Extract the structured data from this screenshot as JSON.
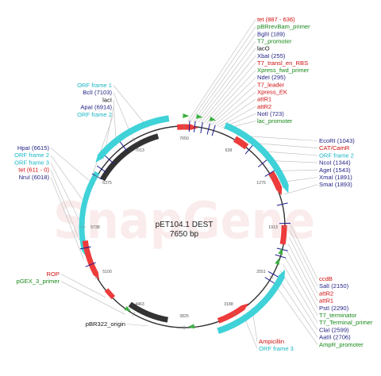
{
  "title": "pET104.1 DEST",
  "subtitle": "7650 bp",
  "watermark": "SnapGene",
  "colors": {
    "backbone": "#333333",
    "red": "#ee3b3b",
    "cyan": "#3fd2d8",
    "gray": "#555555",
    "green": "#3cb043",
    "navy": "#1a1a8c",
    "label_red": "#d01010",
    "label_green": "#18891a",
    "label_cyan": "#19b7c4",
    "label_navy": "#1f1f85",
    "label_black": "#111111",
    "leader": "#bbbbbb",
    "watermark": "#f7dede"
  },
  "ticks": [
    "7650",
    "638",
    "1275",
    "1913",
    "2551",
    "3188",
    "3825",
    "4463",
    "5100",
    "5738",
    "6375",
    "7013"
  ],
  "labels": {
    "top": [
      {
        "text": "tet (887 - 636)",
        "color": "label_red"
      },
      {
        "text": "pBRrevBam_primer",
        "color": "label_green"
      },
      {
        "text": "BglII (189)",
        "color": "label_navy"
      },
      {
        "text": "T7_promoter",
        "color": "label_green"
      },
      {
        "text": "lacO",
        "color": "label_black"
      },
      {
        "text": "XbaI (255)",
        "color": "label_navy"
      },
      {
        "text": "T7_transl_en_RBS",
        "color": "label_red"
      },
      {
        "text": "Xpress_fwd_primer",
        "color": "label_green"
      },
      {
        "text": "NdeI (295)",
        "color": "label_navy"
      },
      {
        "text": "T7_leader",
        "color": "label_red"
      },
      {
        "text": "Xpress_EK",
        "color": "label_red"
      },
      {
        "text": "attR1",
        "color": "label_red"
      },
      {
        "text": "attR2",
        "color": "label_red"
      },
      {
        "text": "NotI (723)",
        "color": "label_navy"
      },
      {
        "text": "lac_promoter",
        "color": "label_green"
      }
    ],
    "right_upper": [
      {
        "text": "EcoRI (1043)",
        "color": "label_navy"
      },
      {
        "text": "CAT/CamR",
        "color": "label_red"
      },
      {
        "text": "ORF frame 2",
        "color": "label_cyan"
      },
      {
        "text": "NcoI (1344)",
        "color": "label_navy"
      },
      {
        "text": "AgeI (1543)",
        "color": "label_navy"
      },
      {
        "text": "XmaI (1891)",
        "color": "label_navy"
      },
      {
        "text": "SmaI (1893)",
        "color": "label_navy"
      }
    ],
    "right_lower": [
      {
        "text": "ccdB",
        "color": "label_red"
      },
      {
        "text": "SalI (2150)",
        "color": "label_navy"
      },
      {
        "text": "attR2",
        "color": "label_red"
      },
      {
        "text": "attR1",
        "color": "label_red"
      },
      {
        "text": "PstI (2290)",
        "color": "label_navy"
      },
      {
        "text": "T7_terminator",
        "color": "label_green"
      },
      {
        "text": "T7_Terminal_primer",
        "color": "label_green"
      },
      {
        "text": "ClaI (2599)",
        "color": "label_navy"
      },
      {
        "text": "AatII (2706)",
        "color": "label_navy"
      },
      {
        "text": "AmpR_promoter",
        "color": "label_green"
      }
    ],
    "bottom_right": [
      {
        "text": "Ampicillin",
        "color": "label_red"
      },
      {
        "text": "ORF frame 3",
        "color": "label_cyan"
      }
    ],
    "left_top": [
      {
        "text": "ORF frame 1",
        "color": "label_cyan"
      },
      {
        "text": "BclI (7103)",
        "color": "label_navy"
      },
      {
        "text": "lacI",
        "color": "label_black"
      },
      {
        "text": "ApaI (6914)",
        "color": "label_navy"
      },
      {
        "text": "ORF frame 2",
        "color": "label_cyan"
      }
    ],
    "left_mid": [
      {
        "text": "HpaI (6615)",
        "color": "label_navy"
      },
      {
        "text": "ORF frame 2",
        "color": "label_cyan"
      },
      {
        "text": "ORF frame 3",
        "color": "label_cyan"
      },
      {
        "text": "tet (611 - 0)",
        "color": "label_red"
      },
      {
        "text": "NruI (6018)",
        "color": "label_navy"
      }
    ],
    "left_low": [
      {
        "text": "ROP",
        "color": "label_red"
      },
      {
        "text": "pGEX_3_primer",
        "color": "label_green"
      }
    ],
    "bottom_left": [
      {
        "text": "pBR322_origin",
        "color": "label_black"
      }
    ]
  }
}
